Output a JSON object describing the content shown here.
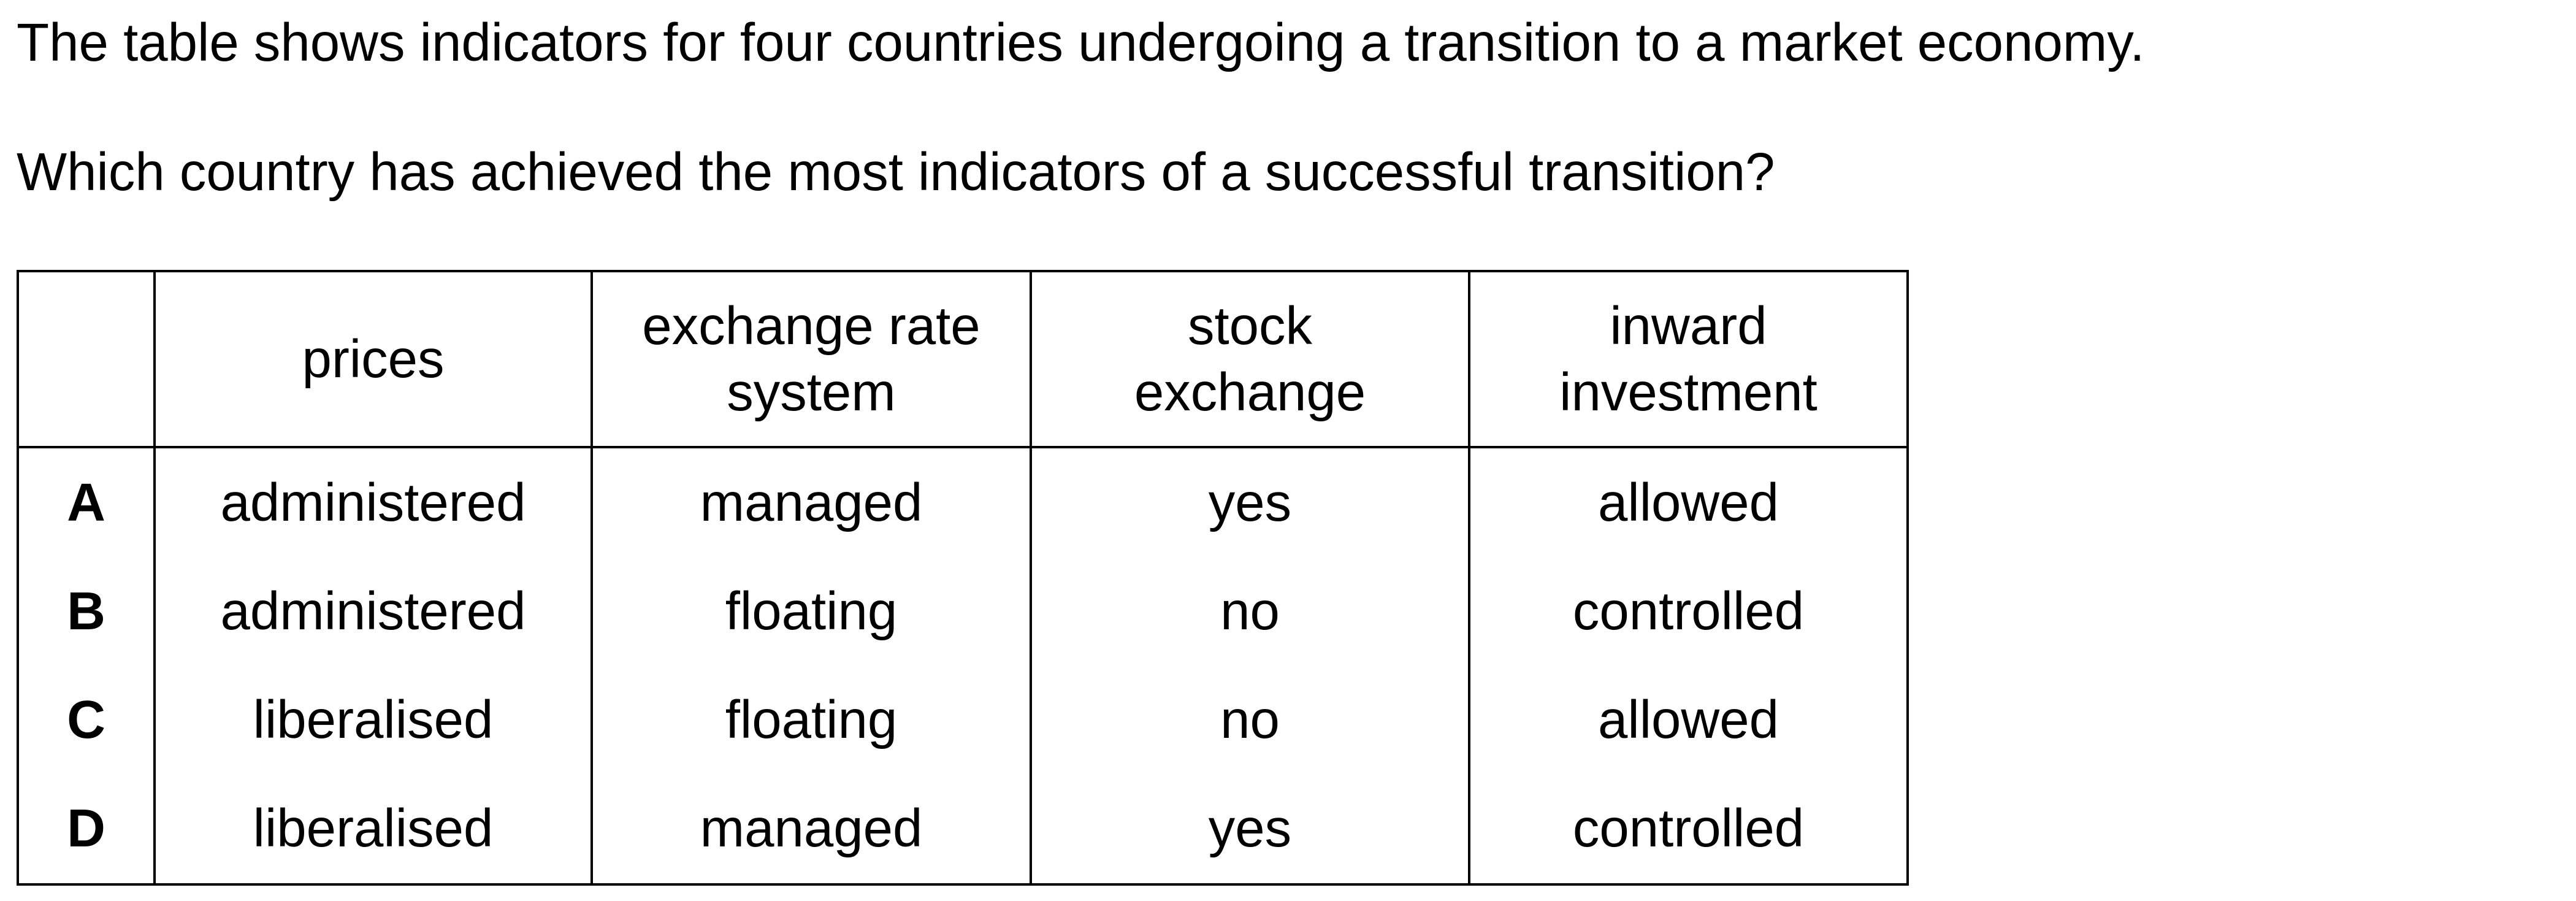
{
  "intro": "The table shows indicators for four countries undergoing a transition to a market economy.",
  "question": "Which country has achieved the most indicators of a successful transition?",
  "table": {
    "headers": [
      "",
      "prices",
      "exchange rate\nsystem",
      "stock\nexchange",
      "inward\ninvestment"
    ],
    "rows": [
      [
        "A",
        "administered",
        "managed",
        "yes",
        "allowed"
      ],
      [
        "B",
        "administered",
        "floating",
        "no",
        "controlled"
      ],
      [
        "C",
        "liberalised",
        "floating",
        "no",
        "allowed"
      ],
      [
        "D",
        "liberalised",
        "managed",
        "yes",
        "controlled"
      ]
    ]
  }
}
